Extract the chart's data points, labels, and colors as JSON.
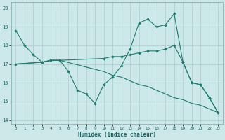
{
  "xlabel": "Humidex (Indice chaleur)",
  "bg_color": "#cce8e8",
  "grid_color": "#aacccc",
  "line_color": "#1a7a6e",
  "xlim": [
    -0.5,
    23.5
  ],
  "ylim": [
    13.8,
    20.3
  ],
  "xticks": [
    0,
    1,
    2,
    3,
    4,
    5,
    6,
    7,
    8,
    9,
    10,
    11,
    12,
    13,
    14,
    15,
    16,
    17,
    18,
    19,
    20,
    21,
    22,
    23
  ],
  "yticks": [
    14,
    15,
    16,
    17,
    18,
    19,
    20
  ],
  "series": [
    {
      "x": [
        0,
        1,
        2,
        3,
        4,
        5,
        6,
        7,
        8,
        9,
        10,
        11,
        12,
        13,
        14,
        15,
        16,
        17,
        18,
        19,
        20,
        21,
        22,
        23
      ],
      "y": [
        18.8,
        18.0,
        17.5,
        17.1,
        17.2,
        17.2,
        16.6,
        15.6,
        15.4,
        14.9,
        15.9,
        16.3,
        16.9,
        17.8,
        19.2,
        19.4,
        19.0,
        19.1,
        19.7,
        17.1,
        16.0,
        15.9,
        15.2,
        14.4
      ]
    },
    {
      "x": [
        0,
        3,
        4,
        5,
        10,
        11,
        12,
        13,
        14,
        15,
        16,
        17,
        18,
        19,
        20,
        21,
        22,
        23
      ],
      "y": [
        17.0,
        17.1,
        17.2,
        17.2,
        17.3,
        17.4,
        17.4,
        17.5,
        17.6,
        17.7,
        17.7,
        17.8,
        18.0,
        17.1,
        16.0,
        15.9,
        15.2,
        14.4
      ]
    },
    {
      "x": [
        0,
        3,
        4,
        5,
        10,
        11,
        12,
        13,
        14,
        15,
        16,
        17,
        18,
        19,
        20,
        21,
        22,
        23
      ],
      "y": [
        17.0,
        17.1,
        17.2,
        17.2,
        16.6,
        16.4,
        16.3,
        16.1,
        15.9,
        15.8,
        15.6,
        15.4,
        15.2,
        15.1,
        14.9,
        14.8,
        14.6,
        14.4
      ]
    }
  ]
}
